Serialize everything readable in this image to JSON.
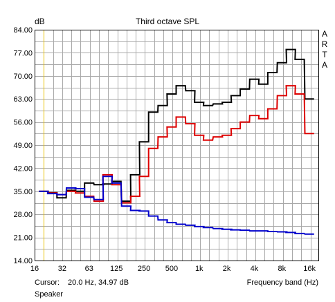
{
  "chart_data": {
    "type": "line",
    "title": "Third octave SPL",
    "ylabel": "dB",
    "xlabel": "Frequency band (Hz)",
    "x_scale": "log",
    "xlim": [
      16,
      20000
    ],
    "ylim": [
      14.0,
      84.0
    ],
    "grid": true,
    "y_ticks": [
      "84.00",
      "77.00",
      "70.00",
      "63.00",
      "56.00",
      "49.00",
      "42.00",
      "35.00",
      "28.00",
      "21.00",
      "14.00"
    ],
    "x_ticks": [
      {
        "label": "16",
        "value": 16
      },
      {
        "label": "32",
        "value": 32
      },
      {
        "label": "63",
        "value": 63
      },
      {
        "label": "125",
        "value": 125
      },
      {
        "label": "250",
        "value": 250
      },
      {
        "label": "500",
        "value": 500
      },
      {
        "label": "1k",
        "value": 1000
      },
      {
        "label": "2k",
        "value": 2000
      },
      {
        "label": "4k",
        "value": 4000
      },
      {
        "label": "8k",
        "value": 8000
      },
      {
        "label": "16k",
        "value": 16000
      }
    ],
    "bands": [
      20,
      25,
      31.5,
      40,
      50,
      63,
      80,
      100,
      125,
      160,
      200,
      250,
      315,
      400,
      500,
      630,
      800,
      1000,
      1250,
      1600,
      2000,
      2500,
      3150,
      4000,
      5000,
      6300,
      8000,
      10000,
      12500,
      16000
    ],
    "series": [
      {
        "color": "#000000",
        "values": [
          34.97,
          34.6,
          33.0,
          35.3,
          35.0,
          37.5,
          37.0,
          37.2,
          38.0,
          32.0,
          40.0,
          50.0,
          59.0,
          61.0,
          64.5,
          67.0,
          65.5,
          62.0,
          61.0,
          61.5,
          62.0,
          64.0,
          66.0,
          69.0,
          67.5,
          71.0,
          74.0,
          78.0,
          75.0,
          63.0
        ]
      },
      {
        "color": "#dd0000",
        "values": [
          34.97,
          34.5,
          34.0,
          35.0,
          34.5,
          33.5,
          32.0,
          40.0,
          37.0,
          31.5,
          33.5,
          39.5,
          48.0,
          51.5,
          54.5,
          57.5,
          55.5,
          52.0,
          50.5,
          51.5,
          52.0,
          54.0,
          56.0,
          58.0,
          57.0,
          60.0,
          64.0,
          67.0,
          64.5,
          52.5
        ]
      },
      {
        "color": "#0000cc",
        "values": [
          34.97,
          34.3,
          34.0,
          36.0,
          35.8,
          33.2,
          32.5,
          39.5,
          37.5,
          30.5,
          29.2,
          29.0,
          27.5,
          26.3,
          25.5,
          25.0,
          24.7,
          24.3,
          24.0,
          23.7,
          23.5,
          23.3,
          23.2,
          23.0,
          23.0,
          22.8,
          22.7,
          22.5,
          22.2,
          22.0
        ]
      }
    ],
    "cursor": {
      "x": 20.0,
      "y": 34.97,
      "color": "#e8c000"
    }
  },
  "cursor_label": "Cursor:",
  "cursor_readout": "20.0 Hz, 34.97 dB",
  "source_label": "Speaker",
  "brand_letters": [
    "A",
    "R",
    "T",
    "A"
  ],
  "colors": {
    "grid": "#a9a9a9",
    "background": "#ffffff"
  }
}
